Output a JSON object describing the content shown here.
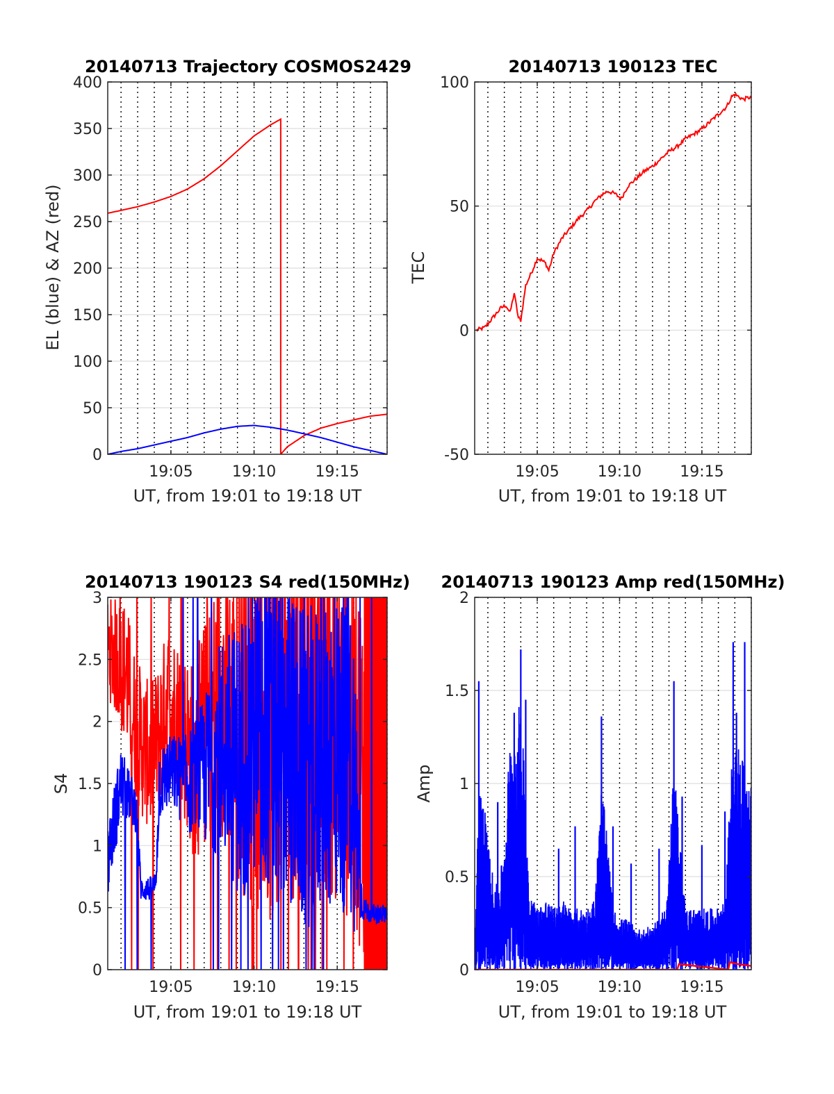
{
  "figure": {
    "background": "#ffffff",
    "colors": {
      "red": "#ff0000",
      "blue": "#0000ff",
      "axis": "#262626",
      "grid": "#dedede",
      "dotted": "#000000"
    }
  },
  "chart_data": [
    {
      "type": "line",
      "title": "20140713 Trajectory COSMOS2429",
      "xlabel": "UT, from 19:01 to 19:18 UT",
      "ylabel": "EL (blue) & AZ (red)",
      "xlim": [
        1141.2,
        1158.0
      ],
      "ylim": [
        0,
        400
      ],
      "yticks": [
        0,
        50,
        100,
        150,
        200,
        250,
        300,
        350,
        400
      ],
      "xticks": [
        1145,
        1150,
        1155
      ],
      "xtick_labels": [
        "19:05",
        "19:10",
        "19:15"
      ],
      "grid": true,
      "series": [
        {
          "color": "#ff0000",
          "style": "line",
          "x": [
            1141.2,
            1142,
            1143,
            1144,
            1145,
            1146,
            1147,
            1148,
            1149,
            1150,
            1151,
            1151.6,
            1151.6,
            1152,
            1153,
            1154,
            1155,
            1156,
            1157,
            1158
          ],
          "y": [
            259,
            262,
            266,
            271,
            277,
            285,
            296,
            310,
            326,
            342,
            354,
            360,
            0,
            8,
            20,
            28,
            33,
            37,
            41,
            43
          ]
        },
        {
          "color": "#0000ff",
          "style": "line",
          "x": [
            1141.2,
            1142,
            1143,
            1144,
            1145,
            1146,
            1147,
            1148,
            1149,
            1150,
            1151,
            1152,
            1153,
            1154,
            1155,
            1156,
            1157,
            1158
          ],
          "y": [
            0,
            3,
            6,
            10,
            14,
            18,
            23,
            27,
            30,
            31,
            29,
            26,
            22,
            18,
            13,
            8,
            4,
            0
          ]
        }
      ]
    },
    {
      "type": "line",
      "title": "20140713 190123 TEC",
      "xlabel": "UT, from 19:01 to 19:18 UT",
      "ylabel": "TEC",
      "xlim": [
        1141.2,
        1158.0
      ],
      "ylim": [
        -50,
        100
      ],
      "yticks": [
        -50,
        0,
        50,
        100
      ],
      "xticks": [
        1145,
        1150,
        1155
      ],
      "xtick_labels": [
        "19:05",
        "19:10",
        "19:15"
      ],
      "grid": true,
      "series": [
        {
          "color": "#ff0000",
          "style": "line",
          "x": [
            1141.3,
            1141.8,
            1142.3,
            1142.8,
            1143.1,
            1143.35,
            1143.6,
            1143.85,
            1144.0,
            1144.3,
            1144.7,
            1145.0,
            1145.3,
            1145.5,
            1145.7,
            1146.0,
            1146.5,
            1147.0,
            1147.5,
            1148.0,
            1148.5,
            1149.0,
            1149.3,
            1149.7,
            1150.1,
            1150.5,
            1151.0,
            1151.5,
            1152.0,
            1152.5,
            1153.0,
            1153.5,
            1154.0,
            1154.5,
            1155.0,
            1155.5,
            1156.0,
            1156.5,
            1156.8,
            1157.0,
            1157.5,
            1158.0
          ],
          "y": [
            0,
            1,
            5,
            9,
            10,
            7,
            15,
            5,
            4,
            18,
            24,
            29,
            28,
            27,
            24,
            31,
            37,
            41,
            45,
            48,
            52,
            55,
            56,
            55,
            53,
            58,
            61,
            64,
            66,
            69,
            72,
            74,
            77,
            79,
            81,
            84,
            87,
            90,
            94,
            95,
            93,
            94
          ]
        }
      ]
    },
    {
      "type": "line",
      "title": "20140713 190123 S4 red(150MHz)",
      "xlabel": "UT, from 19:01 to 19:18 UT",
      "ylabel": "S4",
      "xlim": [
        1141.2,
        1158.0
      ],
      "ylim": [
        0,
        3
      ],
      "yticks": [
        0,
        0.5,
        1,
        1.5,
        2,
        2.5,
        3
      ],
      "xticks": [
        1145,
        1150,
        1155
      ],
      "xtick_labels": [
        "19:05",
        "19:10",
        "19:15"
      ],
      "grid": true,
      "series": [
        {
          "color": "#ff0000",
          "style": "noisy",
          "x": [
            1141.2,
            1141.8,
            1142.3,
            1142.8,
            1143.3,
            1143.8,
            1144.3,
            1144.8,
            1145.3,
            1145.8,
            1146.3,
            1146.8,
            1147.3,
            1148.0,
            1149.0,
            1150.0,
            1151.0,
            1152.0,
            1153.0,
            1154.0,
            1155.0,
            1156.0,
            1156.6,
            1157.0,
            1158.0
          ],
          "y": [
            2.6,
            2.5,
            2.4,
            2.0,
            1.8,
            1.7,
            1.9,
            2.2,
            2.1,
            1.9,
            1.7,
            1.8,
            2.0,
            2.2,
            2.0,
            1.8,
            1.9,
            2.1,
            2.0,
            2.2,
            2.0,
            1.8,
            1.6,
            1.5,
            1.5
          ],
          "spread": [
            0.4,
            0.5,
            0.6,
            0.6,
            0.6,
            0.6,
            0.6,
            0.6,
            0.6,
            0.7,
            0.8,
            0.9,
            1.0,
            1.1,
            1.3,
            1.4,
            1.5,
            1.5,
            1.5,
            1.5,
            1.5,
            1.5,
            1.5,
            1.5,
            1.5
          ]
        },
        {
          "color": "#0000ff",
          "style": "noisy",
          "x": [
            1141.2,
            1141.6,
            1142.0,
            1142.5,
            1142.9,
            1143.2,
            1143.8,
            1144.1,
            1144.3,
            1145.0,
            1146.0,
            1147.0,
            1148.0,
            1149.0,
            1150.0,
            1151.0,
            1152.0,
            1153.0,
            1154.0,
            1155.0,
            1156.0,
            1156.5,
            1157.0,
            1158.0
          ],
          "y": [
            0.9,
            1.2,
            1.5,
            1.4,
            1.3,
            0.65,
            0.65,
            0.7,
            1.5,
            1.6,
            1.5,
            1.6,
            1.8,
            1.7,
            1.9,
            1.9,
            1.8,
            1.6,
            1.7,
            1.8,
            1.6,
            0.5,
            0.45,
            0.45
          ],
          "spread": [
            0.3,
            0.3,
            0.3,
            0.2,
            0.2,
            0.1,
            0.1,
            0.1,
            0.3,
            0.3,
            0.4,
            0.6,
            0.9,
            1.1,
            1.3,
            1.3,
            1.3,
            1.3,
            1.3,
            1.3,
            1.3,
            0.1,
            0.08,
            0.08
          ]
        }
      ]
    },
    {
      "type": "line",
      "title": "20140713 190123 Amp red(150MHz)",
      "xlabel": "UT, from 19:01 to 19:18 UT",
      "ylabel": "Amp",
      "xlim": [
        1141.2,
        1158.0
      ],
      "ylim": [
        0,
        2
      ],
      "yticks": [
        0,
        0.5,
        1,
        1.5,
        2
      ],
      "xticks": [
        1145,
        1150,
        1155
      ],
      "xtick_labels": [
        "19:05",
        "19:10",
        "19:15"
      ],
      "grid": true,
      "series": [
        {
          "color": "#0000ff",
          "style": "spiky",
          "x": [
            1141.2,
            1141.5,
            1141.8,
            1142.2,
            1142.6,
            1143.0,
            1143.3,
            1143.6,
            1143.9,
            1144.2,
            1144.5,
            1145.0,
            1145.5,
            1146.0,
            1146.5,
            1147.0,
            1147.5,
            1148.0,
            1148.5,
            1148.9,
            1149.2,
            1149.6,
            1150.0,
            1150.5,
            1151.0,
            1151.5,
            1152.0,
            1152.5,
            1152.9,
            1153.3,
            1153.6,
            1154.0,
            1154.5,
            1155.0,
            1155.5,
            1156.0,
            1156.4,
            1156.8,
            1157.2,
            1157.6,
            1158.0
          ],
          "y": [
            0.1,
            1.0,
            0.8,
            0.5,
            0.4,
            0.6,
            1.1,
            1.2,
            1.3,
            1.1,
            0.4,
            0.3,
            0.35,
            0.3,
            0.35,
            0.3,
            0.3,
            0.3,
            0.35,
            0.9,
            0.7,
            0.3,
            0.25,
            0.25,
            0.2,
            0.2,
            0.22,
            0.25,
            0.4,
            1.0,
            0.7,
            0.3,
            0.3,
            0.3,
            0.3,
            0.3,
            0.35,
            1.0,
            1.1,
            1.0,
            0.9
          ],
          "peaks": [
            [
              1141.45,
              1.55
            ],
            [
              1142.6,
              0.9
            ],
            [
              1143.6,
              1.38
            ],
            [
              1144.0,
              1.72
            ],
            [
              1144.3,
              1.45
            ],
            [
              1146.3,
              0.65
            ],
            [
              1147.3,
              0.77
            ],
            [
              1148.9,
              1.36
            ],
            [
              1149.6,
              0.77
            ],
            [
              1150.7,
              0.57
            ],
            [
              1152.4,
              0.65
            ],
            [
              1153.3,
              1.55
            ],
            [
              1153.8,
              0.93
            ],
            [
              1155.0,
              0.67
            ],
            [
              1156.4,
              0.85
            ],
            [
              1156.9,
              1.76
            ],
            [
              1157.6,
              1.76
            ],
            [
              1157.1,
              1.38
            ]
          ]
        },
        {
          "color": "#ff0000",
          "style": "floor",
          "x": [
            1141.2,
            1153.5,
            1153.6,
            1156.6,
            1156.7,
            1157.2,
            1158.0
          ],
          "y": [
            0,
            0,
            0.03,
            0,
            0.04,
            0.03,
            0.02
          ]
        }
      ]
    }
  ]
}
